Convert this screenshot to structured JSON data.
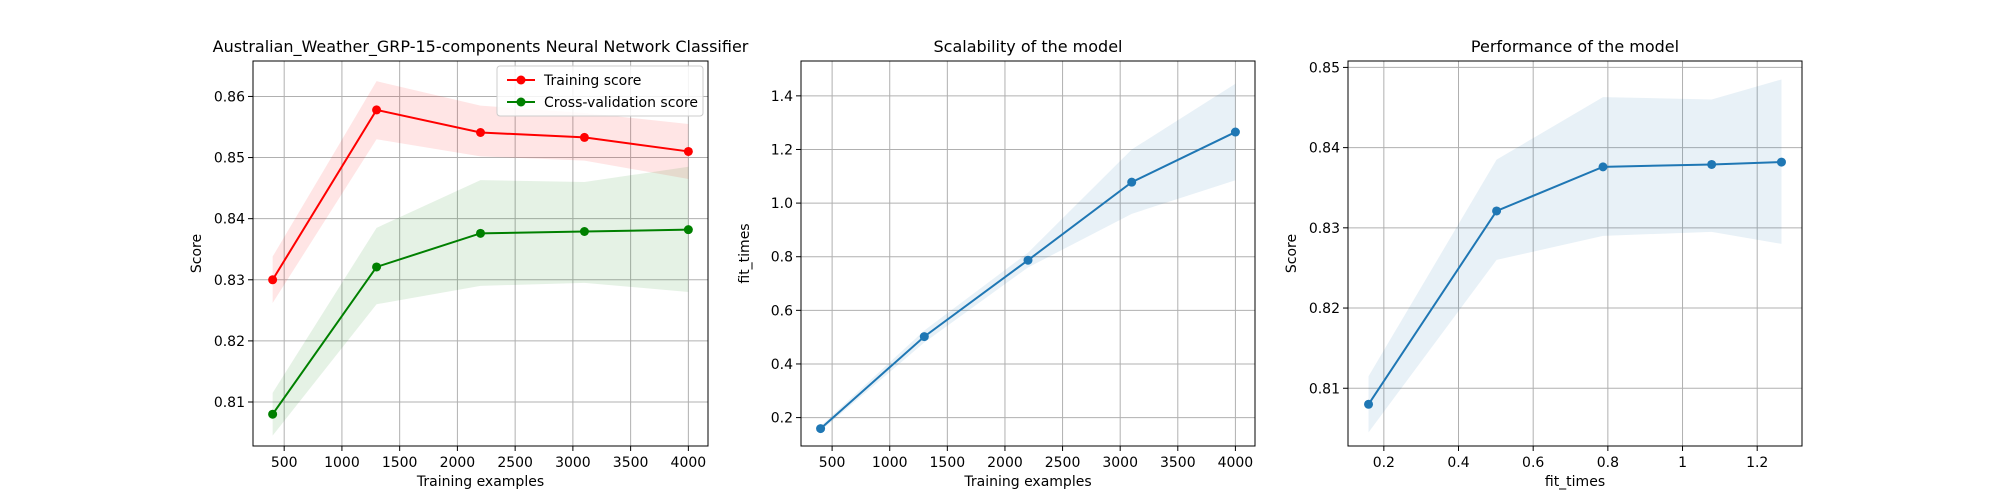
{
  "chart_data": [
    {
      "type": "line",
      "title": "Australian_Weather_GRP-15-components Neural Network Classifier",
      "xlabel": "Training examples",
      "ylabel": "Score",
      "xlim": [
        230,
        4170
      ],
      "ylim": [
        0.8028,
        0.8658
      ],
      "xticks": [
        500,
        1000,
        1500,
        2000,
        2500,
        3000,
        3500,
        4000
      ],
      "yticks": [
        0.81,
        0.82,
        0.83,
        0.84,
        0.85,
        0.86
      ],
      "ytick_decimals": 2,
      "grid": true,
      "legend": "top-right",
      "series": [
        {
          "name": "Training score",
          "color": "#ff0000",
          "x": [
            400,
            1300,
            2200,
            3100,
            4000
          ],
          "y": [
            0.83,
            0.8578,
            0.8541,
            0.8533,
            0.851
          ],
          "band_low": [
            0.8262,
            0.853,
            0.8502,
            0.8495,
            0.8465
          ],
          "band_high": [
            0.8338,
            0.8625,
            0.8585,
            0.8573,
            0.8555
          ]
        },
        {
          "name": "Cross-validation score",
          "color": "#008000",
          "x": [
            400,
            1300,
            2200,
            3100,
            4000
          ],
          "y": [
            0.808,
            0.8321,
            0.8376,
            0.8379,
            0.8382
          ],
          "band_low": [
            0.8045,
            0.826,
            0.829,
            0.8295,
            0.828
          ],
          "band_high": [
            0.8115,
            0.8385,
            0.8463,
            0.846,
            0.8485
          ]
        }
      ]
    },
    {
      "type": "line",
      "title": "Scalability of the model",
      "xlabel": "Training examples",
      "ylabel": "fit_times",
      "xlim": [
        230,
        4170
      ],
      "ylim": [
        0.094,
        1.53
      ],
      "xticks": [
        500,
        1000,
        1500,
        2000,
        2500,
        3000,
        3500,
        4000
      ],
      "yticks": [
        0.2,
        0.4,
        0.6,
        0.8,
        1.0,
        1.2,
        1.4
      ],
      "ytick_decimals": 1,
      "grid": true,
      "series": [
        {
          "color": "#1f77b4",
          "x": [
            400,
            1300,
            2200,
            3100,
            4000
          ],
          "y": [
            0.159,
            0.502,
            0.787,
            1.078,
            1.265
          ],
          "band_low": [
            0.15,
            0.48,
            0.76,
            0.96,
            1.085
          ],
          "band_high": [
            0.168,
            0.525,
            0.815,
            1.2,
            1.445
          ]
        }
      ]
    },
    {
      "type": "line",
      "title": "Performance of the model",
      "xlabel": "fit_times",
      "ylabel": "Score",
      "xlim": [
        0.104,
        1.32
      ],
      "ylim": [
        0.8028,
        0.8508
      ],
      "xticks": [
        0.2,
        0.4,
        0.6,
        0.8,
        1.0,
        1.2
      ],
      "yticks": [
        0.81,
        0.82,
        0.83,
        0.84,
        0.85
      ],
      "ytick_decimals": 2,
      "grid": true,
      "series": [
        {
          "color": "#1f77b4",
          "x": [
            0.159,
            0.502,
            0.787,
            1.078,
            1.265
          ],
          "y": [
            0.808,
            0.8321,
            0.8376,
            0.8379,
            0.8382
          ],
          "band_low": [
            0.8045,
            0.826,
            0.829,
            0.8295,
            0.828
          ],
          "band_high": [
            0.8115,
            0.8385,
            0.8463,
            0.846,
            0.8485
          ]
        }
      ]
    }
  ]
}
